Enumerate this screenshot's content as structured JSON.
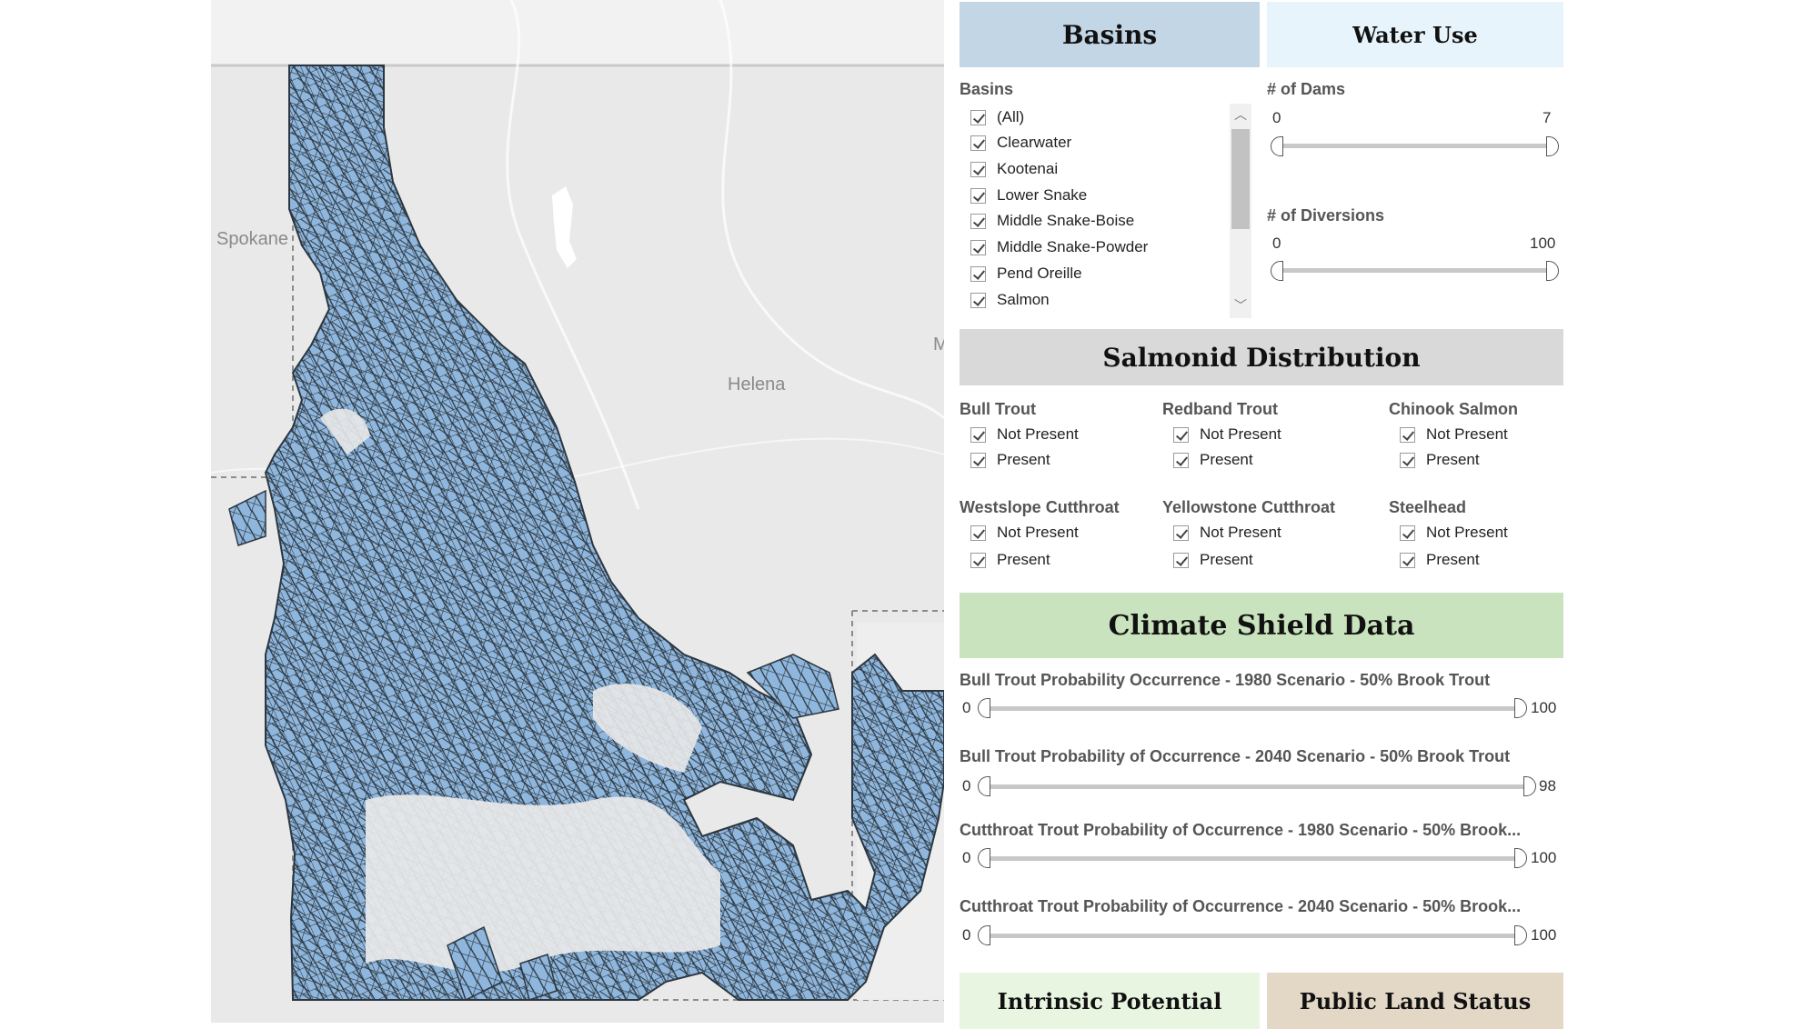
{
  "map": {
    "city_labels": [
      {
        "name": "Spokane"
      },
      {
        "name": "Helena"
      },
      {
        "name": "M"
      }
    ]
  },
  "basins": {
    "header": "Basins",
    "filter_label": "Basins",
    "items": [
      "(All)",
      "Clearwater",
      "Kootenai",
      "Lower Snake",
      "Middle Snake-Boise",
      "Middle Snake-Powder",
      "Pend Oreille",
      "Salmon"
    ]
  },
  "water_use": {
    "header": "Water Use",
    "dams": {
      "label": "# of Dams",
      "min": "0",
      "max": "7"
    },
    "diversions": {
      "label": "# of Diversions",
      "min": "0",
      "max": "100"
    }
  },
  "salmonid": {
    "header": "Salmonid Distribution",
    "species": [
      {
        "name": "Bull Trout",
        "options": [
          "Not Present",
          "Present"
        ]
      },
      {
        "name": "Redband Trout",
        "options": [
          "Not Present",
          "Present"
        ]
      },
      {
        "name": "Chinook Salmon",
        "options": [
          "Not Present",
          "Present"
        ]
      },
      {
        "name": "Westslope Cutthroat",
        "options": [
          "Not Present",
          "Present"
        ]
      },
      {
        "name": "Yellowstone Cutthroat",
        "options": [
          "Not Present",
          "Present"
        ]
      },
      {
        "name": "Steelhead",
        "options": [
          "Not Present",
          "Present"
        ]
      }
    ]
  },
  "climate": {
    "header": "Climate Shield Data",
    "sliders": [
      {
        "label": "Bull Trout Probability Occurrence - 1980 Scenario - 50% Brook Trout",
        "min": "0",
        "max": "100"
      },
      {
        "label": "Bull Trout Probability of Occurrence - 2040 Scenario - 50% Brook Trout",
        "min": "0",
        "max": "98"
      },
      {
        "label": "Cutthroat Trout Probability of Occurrence - 1980 Scenario - 50% Brook...",
        "min": "0",
        "max": "100"
      },
      {
        "label": "Cutthroat Trout Probability of Occurrence - 2040 Scenario - 50% Brook...",
        "min": "0",
        "max": "100"
      }
    ]
  },
  "bottom_tabs": {
    "intrinsic": "Intrinsic Potential",
    "public_land": "Public Land Status"
  },
  "colors": {
    "basins_header": "#c3d6e6",
    "water_use_header": "#e8f4fb",
    "salmonid_header": "#d9d9d9",
    "climate_header": "#c8e3bd",
    "intrinsic_header": "#e8f5e1",
    "public_land_header": "#e3d7c6",
    "basin_fill": "#8fb6dc",
    "basin_stroke": "#2b3640",
    "map_background": "#e9e9e9"
  }
}
